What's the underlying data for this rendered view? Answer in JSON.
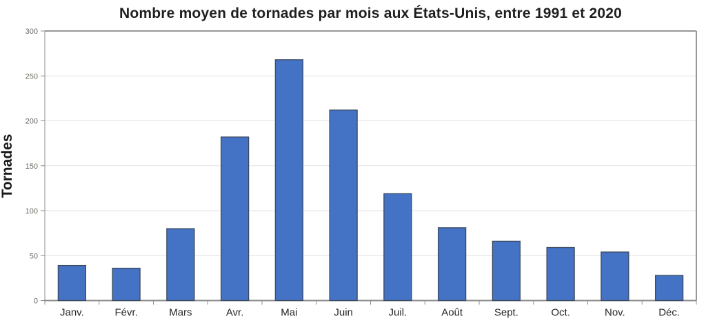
{
  "chart_data": {
    "type": "bar",
    "title": "Nombre moyen de tornades par mois aux États-Unis, entre 1991 et 2020",
    "xlabel": "",
    "ylabel": "Tornades",
    "categories": [
      "Janv.",
      "Févr.",
      "Mars",
      "Avr.",
      "Mai",
      "Juin",
      "Juil.",
      "Août",
      "Sept.",
      "Oct.",
      "Nov.",
      "Déc."
    ],
    "values": [
      39,
      36,
      80,
      182,
      268,
      212,
      119,
      81,
      66,
      59,
      54,
      28
    ],
    "ylim": [
      0,
      300
    ],
    "yticks": [
      0,
      50,
      100,
      150,
      200,
      250,
      300
    ],
    "grid": true,
    "legend": false,
    "colors": {
      "bar_fill": "#4472C4",
      "bar_border": "#3d4a60",
      "gridline": "#e2e2e2",
      "axis_line": "#8c8c8c",
      "plot_border": "#757575",
      "title_text": "#1f1f1f",
      "ytick_text": "#6e675f",
      "xtick_text": "#262626"
    }
  }
}
